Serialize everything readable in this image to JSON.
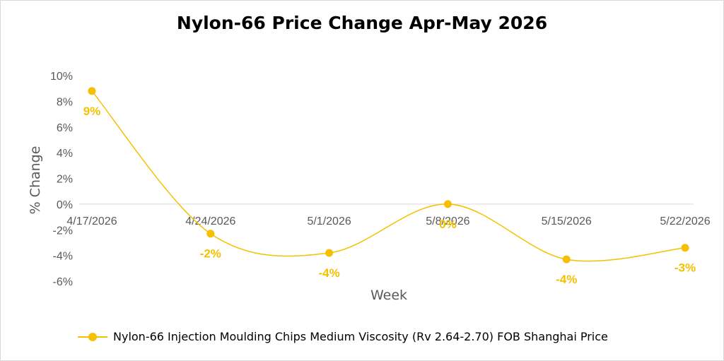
{
  "chart_data": {
    "type": "line",
    "title": "Nylon-66 Price Change Apr-May 2026",
    "xlabel": "Week",
    "ylabel": "% Change",
    "categories": [
      "4/17/2026",
      "4/24/2026",
      "5/1/2026",
      "5/8/2026",
      "5/15/2026",
      "5/22/2026"
    ],
    "series": [
      {
        "name": "Nylon-66 Injection Moulding Chips Medium Viscosity (Rv 2.64-2.70) FOB Shanghai Price",
        "values": [
          8.8,
          -2.3,
          -3.8,
          0.0,
          -4.3,
          -3.4
        ],
        "labels": [
          "9%",
          "-2%",
          "-4%",
          "0%",
          "-4%",
          "-3%"
        ],
        "color": "#f5c000"
      }
    ],
    "ylim": [
      -6,
      10
    ],
    "yticks": [
      10,
      8,
      6,
      4,
      2,
      0,
      -2,
      -4,
      -6
    ],
    "ytick_labels": [
      "10%",
      "8%",
      "6%",
      "4%",
      "2%",
      "0%",
      "-2%",
      "-4%",
      "-6%"
    ],
    "grid": false,
    "legend": "bottom"
  }
}
